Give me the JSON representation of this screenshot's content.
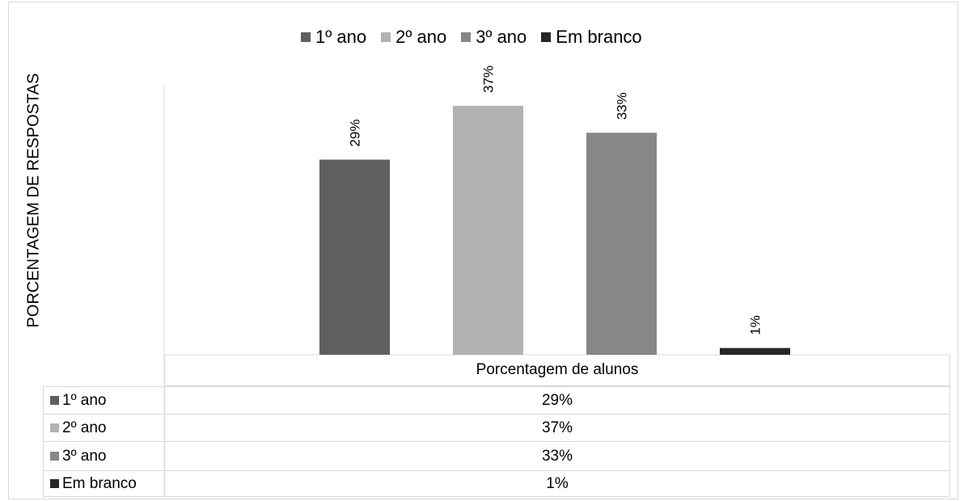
{
  "chart_data": {
    "type": "bar",
    "categories": [
      "Porcentagem de alunos"
    ],
    "series": [
      {
        "name": "1º ano",
        "values": [
          29
        ],
        "label": "29%",
        "color": "#5f5f5f"
      },
      {
        "name": "2º ano",
        "values": [
          37
        ],
        "label": "37%",
        "color": "#b2b2b2"
      },
      {
        "name": "3º ano",
        "values": [
          33
        ],
        "label": "33%",
        "color": "#878787"
      },
      {
        "name": "Em branco",
        "values": [
          1
        ],
        "label": "1%",
        "color": "#262626"
      }
    ],
    "ylabel": "PORCENTAGEM DE RESPOSTAS",
    "xlabel": "",
    "legend_position": "top",
    "grid": false,
    "data_table": {
      "header": "Porcentagem de alunos",
      "rows": [
        {
          "name": "1º ano",
          "value": "29%"
        },
        {
          "name": "2º ano",
          "value": "37%"
        },
        {
          "name": "3º ano",
          "value": "33%"
        },
        {
          "name": "Em branco",
          "value": "1%"
        }
      ]
    }
  }
}
